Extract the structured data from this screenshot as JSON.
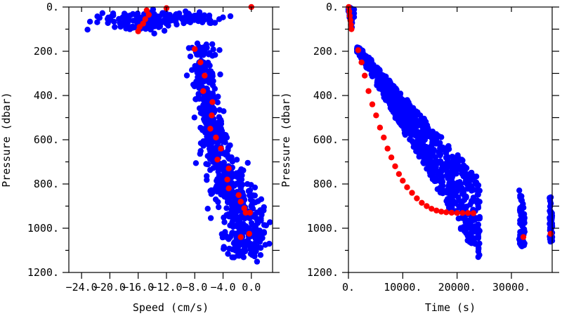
{
  "chart_data": [
    {
      "type": "scatter",
      "xlabel": "Speed (cm/s)",
      "ylabel": "Pressure (dbar)",
      "xlim": [
        -25.8,
        3.0
      ],
      "ylim": [
        1200,
        0
      ],
      "x_ticks": [
        -24.0,
        -20.0,
        -16.0,
        -12.0,
        -8.0,
        -4.0,
        0.0
      ],
      "x_tick_labels": [
        "-24.0",
        "-20.0",
        "-16.0",
        "-12.0",
        "-8.0",
        "-4.0",
        "0.0"
      ],
      "y_ticks": [
        0,
        200,
        400,
        600,
        800,
        1000,
        1200
      ],
      "y_tick_labels": [
        "0.",
        "200.",
        "400.",
        "600.",
        "800.",
        "1000.",
        "1200."
      ],
      "series": [
        {
          "color": "#0000ff",
          "description": "raw",
          "clusters": [
            {
              "x": -12.5,
              "y": 50,
              "sx": 4.5,
              "sy": 15,
              "n": 140
            },
            {
              "x": -15.5,
              "y": 85,
              "sx": 2.2,
              "sy": 15,
              "n": 60
            },
            {
              "x": -7.0,
              "y": 200,
              "sx": 0.9,
              "sy": 20,
              "n": 30
            },
            {
              "x": -6.8,
              "y": 300,
              "sx": 0.8,
              "sy": 40,
              "n": 60
            },
            {
              "x": -6.2,
              "y": 420,
              "sx": 0.8,
              "sy": 45,
              "n": 70
            },
            {
              "x": -5.4,
              "y": 540,
              "sx": 1.0,
              "sy": 45,
              "n": 80
            },
            {
              "x": -4.7,
              "y": 660,
              "sx": 1.1,
              "sy": 45,
              "n": 90
            },
            {
              "x": -3.6,
              "y": 780,
              "sx": 1.3,
              "sy": 45,
              "n": 110
            },
            {
              "x": -1.8,
              "y": 900,
              "sx": 1.5,
              "sy": 50,
              "n": 130
            },
            {
              "x": -0.8,
              "y": 1020,
              "sx": 1.5,
              "sy": 50,
              "n": 130
            },
            {
              "x": -1.2,
              "y": 1110,
              "sx": 1.2,
              "sy": 20,
              "n": 25
            }
          ]
        },
        {
          "color": "#ff0000",
          "description": "mean",
          "points": [
            [
              0.0,
              0
            ],
            [
              -12.0,
              5
            ],
            [
              -14.8,
              15
            ],
            [
              -14.5,
              35
            ],
            [
              -15.0,
              55
            ],
            [
              -15.3,
              75
            ],
            [
              -15.8,
              90
            ],
            [
              -16.0,
              110
            ],
            [
              -8.0,
              190
            ],
            [
              -7.2,
              250
            ],
            [
              -6.6,
              310
            ],
            [
              -6.8,
              380
            ],
            [
              -5.5,
              430
            ],
            [
              -5.6,
              490
            ],
            [
              -5.8,
              550
            ],
            [
              -5.0,
              590
            ],
            [
              -4.3,
              640
            ],
            [
              -4.8,
              690
            ],
            [
              -3.2,
              730
            ],
            [
              -3.4,
              780
            ],
            [
              -3.2,
              820
            ],
            [
              -1.8,
              850
            ],
            [
              -1.5,
              880
            ],
            [
              -1.0,
              910
            ],
            [
              -0.8,
              930
            ],
            [
              -0.2,
              930
            ],
            [
              -0.3,
              1025
            ],
            [
              -1.5,
              1040
            ]
          ]
        }
      ]
    },
    {
      "type": "scatter",
      "xlabel": "Time (s)",
      "ylabel": "Pressure (dbar)",
      "xlim": [
        0,
        37500
      ],
      "ylim": [
        1200,
        0
      ],
      "x_ticks": [
        0,
        10000,
        20000,
        30000
      ],
      "x_tick_labels": [
        "0.",
        "10000.",
        "20000.",
        "30000."
      ],
      "y_ticks": [
        0,
        200,
        400,
        600,
        800,
        1000,
        1200
      ],
      "y_tick_labels": [
        "0.",
        "200.",
        "400.",
        "600.",
        "800.",
        "1000.",
        "1200."
      ],
      "series": [
        {
          "color": "#0000ff",
          "description": "raw",
          "bands": [
            {
              "x": [
                0,
                1000
              ],
              "ymin": [
                0,
                10
              ],
              "ymax": [
                10,
                105
              ]
            },
            {
              "x": [
                1500,
                24000
              ],
              "ymin": [
                170,
                780
              ],
              "ymax": [
                195,
                1140
              ]
            },
            {
              "x": [
                24000,
                24000
              ],
              "ymin": [
                780,
                820
              ],
              "ymax": [
                1140,
                1100
              ]
            },
            {
              "x": [
                31500,
                32500
              ],
              "ymin": [
                810,
                950
              ],
              "ymax": [
                1080,
                1100
              ]
            },
            {
              "x": [
                37000,
                37500
              ],
              "ymin": [
                790,
                950
              ],
              "ymax": [
                1070,
                1060
              ]
            }
          ]
        },
        {
          "color": "#ff0000",
          "description": "mean",
          "points": [
            [
              50,
              0
            ],
            [
              150,
              20
            ],
            [
              250,
              40
            ],
            [
              350,
              60
            ],
            [
              450,
              80
            ],
            [
              550,
              100
            ],
            [
              1800,
              195
            ],
            [
              2400,
              250
            ],
            [
              3000,
              310
            ],
            [
              3700,
              380
            ],
            [
              4400,
              440
            ],
            [
              5100,
              490
            ],
            [
              5800,
              545
            ],
            [
              6500,
              590
            ],
            [
              7200,
              640
            ],
            [
              7900,
              680
            ],
            [
              8600,
              720
            ],
            [
              9300,
              755
            ],
            [
              10000,
              785
            ],
            [
              10800,
              815
            ],
            [
              11700,
              840
            ],
            [
              12600,
              865
            ],
            [
              13500,
              885
            ],
            [
              14400,
              900
            ],
            [
              15300,
              912
            ],
            [
              16200,
              920
            ],
            [
              17100,
              925
            ],
            [
              18000,
              928
            ],
            [
              19000,
              930
            ],
            [
              20000,
              931
            ],
            [
              21000,
              931
            ],
            [
              22000,
              931
            ],
            [
              23000,
              932
            ],
            [
              32200,
              1040
            ],
            [
              37200,
              1025
            ]
          ]
        }
      ]
    }
  ]
}
